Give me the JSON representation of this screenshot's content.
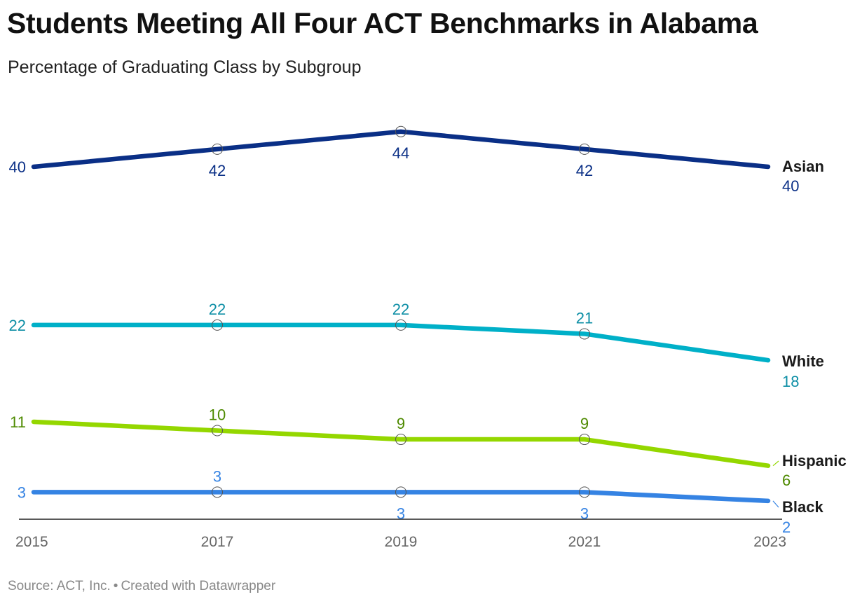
{
  "title": "Students Meeting All Four ACT Benchmarks in Alabama",
  "subtitle": "Percentage of Graduating Class by Subgroup",
  "source": {
    "source_text": "Source: ACT, Inc.",
    "separator": "•",
    "credit_text": "Created with Datawrapper"
  },
  "chart_data": {
    "type": "line",
    "x": [
      "2015",
      "2017",
      "2019",
      "2021",
      "2023"
    ],
    "ylim": [
      0,
      44
    ],
    "grid": false,
    "series": [
      {
        "name": "Asian",
        "values": [
          40,
          42,
          44,
          42,
          40
        ],
        "color": "#0a2f86",
        "label_color": "#0a2f86"
      },
      {
        "name": "White",
        "values": [
          22,
          22,
          22,
          21,
          18
        ],
        "color": "#00b0c8",
        "label_color": "#0e8fa6"
      },
      {
        "name": "Hispanic",
        "values": [
          11,
          10,
          9,
          9,
          6
        ],
        "color": "#94d700",
        "label_color": "#4e8a00"
      },
      {
        "name": "Black",
        "values": [
          3,
          3,
          3,
          3,
          2
        ],
        "color": "#3583e3",
        "label_color": "#3583e3"
      }
    ]
  }
}
